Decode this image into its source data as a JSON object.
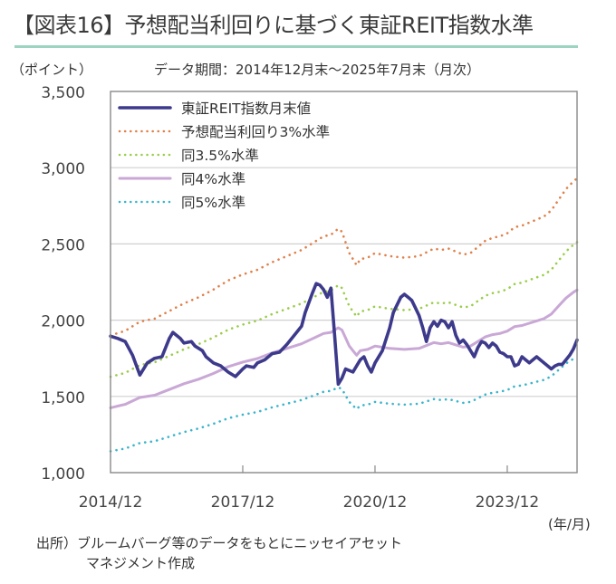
{
  "title": "【図表16】予想配当利回りに基づく東証REIT指数水準",
  "y_unit": "（ポイント）",
  "period_note": "データ期間：2014年12月末～2025年7月末（月次）",
  "x_unit": "(年/月)",
  "source_line1": "出所）ブルームバーグ等のデータをもとにニッセイアセット",
  "source_line2": "マネジメント作成",
  "colors": {
    "reit": "#3d3a8c",
    "y3": "#e0804a",
    "y35": "#9acd4a",
    "y4": "#c9a8d6",
    "y5": "#3bb4cc",
    "grid": "#d0d0d0",
    "axis": "#888888",
    "title_rule": "#9dd3c2"
  },
  "chart_data": {
    "type": "line",
    "title": "予想配当利回りに基づく東証REIT指数水準",
    "xlabel": "(年/月)",
    "ylabel": "（ポイント）",
    "ylim": [
      1000,
      3500
    ],
    "yticks": [
      1000,
      1500,
      2000,
      2500,
      3000,
      3500
    ],
    "ytick_labels": [
      "1,000",
      "1,500",
      "2,000",
      "2,500",
      "3,000",
      "3,500"
    ],
    "x_start": "2014/12",
    "x_end": "2025/7",
    "x_months_total": 127,
    "xticks": [
      {
        "month_index": 0,
        "label": "2014/12"
      },
      {
        "month_index": 36,
        "label": "2017/12"
      },
      {
        "month_index": 72,
        "label": "2020/12"
      },
      {
        "month_index": 108,
        "label": "2023/12"
      }
    ],
    "grid": "horizontal",
    "legend": "top-left",
    "series": [
      {
        "key": "reit",
        "name": "東証REIT指数月末値",
        "style": "solid-thick",
        "points": [
          [
            0,
            1895
          ],
          [
            2,
            1880
          ],
          [
            4,
            1860
          ],
          [
            6,
            1770
          ],
          [
            8,
            1640
          ],
          [
            10,
            1720
          ],
          [
            12,
            1750
          ],
          [
            14,
            1760
          ],
          [
            16,
            1880
          ],
          [
            17,
            1920
          ],
          [
            19,
            1880
          ],
          [
            20,
            1850
          ],
          [
            22,
            1860
          ],
          [
            23,
            1830
          ],
          [
            25,
            1800
          ],
          [
            26,
            1760
          ],
          [
            28,
            1720
          ],
          [
            30,
            1700
          ],
          [
            32,
            1660
          ],
          [
            34,
            1630
          ],
          [
            36,
            1680
          ],
          [
            37,
            1700
          ],
          [
            39,
            1690
          ],
          [
            40,
            1720
          ],
          [
            42,
            1740
          ],
          [
            44,
            1780
          ],
          [
            46,
            1790
          ],
          [
            48,
            1840
          ],
          [
            50,
            1900
          ],
          [
            52,
            1960
          ],
          [
            53,
            2050
          ],
          [
            55,
            2180
          ],
          [
            56,
            2240
          ],
          [
            57,
            2230
          ],
          [
            58,
            2200
          ],
          [
            59,
            2150
          ],
          [
            60,
            2210
          ],
          [
            61,
            1900
          ],
          [
            62,
            1580
          ],
          [
            63,
            1620
          ],
          [
            64,
            1680
          ],
          [
            66,
            1660
          ],
          [
            67,
            1700
          ],
          [
            68,
            1740
          ],
          [
            69,
            1760
          ],
          [
            70,
            1700
          ],
          [
            71,
            1660
          ],
          [
            72,
            1720
          ],
          [
            74,
            1800
          ],
          [
            76,
            1950
          ],
          [
            77,
            2050
          ],
          [
            79,
            2150
          ],
          [
            80,
            2170
          ],
          [
            81,
            2150
          ],
          [
            82,
            2130
          ],
          [
            83,
            2080
          ],
          [
            84,
            2030
          ],
          [
            85,
            1950
          ],
          [
            86,
            1860
          ],
          [
            87,
            1950
          ],
          [
            88,
            1990
          ],
          [
            89,
            1960
          ],
          [
            90,
            2000
          ],
          [
            91,
            1990
          ],
          [
            92,
            1950
          ],
          [
            93,
            1990
          ],
          [
            94,
            1900
          ],
          [
            95,
            1850
          ],
          [
            96,
            1870
          ],
          [
            97,
            1840
          ],
          [
            98,
            1800
          ],
          [
            99,
            1760
          ],
          [
            100,
            1820
          ],
          [
            101,
            1860
          ],
          [
            102,
            1850
          ],
          [
            103,
            1820
          ],
          [
            104,
            1850
          ],
          [
            105,
            1830
          ],
          [
            106,
            1790
          ],
          [
            107,
            1780
          ],
          [
            108,
            1760
          ],
          [
            109,
            1760
          ],
          [
            110,
            1700
          ],
          [
            111,
            1710
          ],
          [
            112,
            1760
          ],
          [
            113,
            1740
          ],
          [
            114,
            1720
          ],
          [
            115,
            1740
          ],
          [
            116,
            1760
          ],
          [
            117,
            1740
          ],
          [
            118,
            1720
          ],
          [
            119,
            1700
          ],
          [
            120,
            1680
          ],
          [
            121,
            1700
          ],
          [
            122,
            1710
          ],
          [
            123,
            1710
          ],
          [
            124,
            1740
          ],
          [
            125,
            1770
          ],
          [
            126,
            1810
          ],
          [
            127,
            1870
          ]
        ]
      },
      {
        "key": "y3",
        "name": "予想配当利回り3%水準",
        "style": "dotted",
        "points": [
          [
            0,
            1900
          ],
          [
            4,
            1930
          ],
          [
            8,
            1990
          ],
          [
            12,
            2010
          ],
          [
            16,
            2060
          ],
          [
            20,
            2110
          ],
          [
            24,
            2150
          ],
          [
            28,
            2200
          ],
          [
            32,
            2260
          ],
          [
            36,
            2300
          ],
          [
            40,
            2330
          ],
          [
            44,
            2380
          ],
          [
            48,
            2420
          ],
          [
            52,
            2460
          ],
          [
            56,
            2520
          ],
          [
            58,
            2550
          ],
          [
            60,
            2560
          ],
          [
            62,
            2600
          ],
          [
            63,
            2580
          ],
          [
            64,
            2510
          ],
          [
            65,
            2440
          ],
          [
            66,
            2400
          ],
          [
            67,
            2360
          ],
          [
            68,
            2400
          ],
          [
            70,
            2410
          ],
          [
            72,
            2440
          ],
          [
            76,
            2420
          ],
          [
            80,
            2410
          ],
          [
            84,
            2420
          ],
          [
            88,
            2470
          ],
          [
            90,
            2460
          ],
          [
            92,
            2470
          ],
          [
            94,
            2450
          ],
          [
            96,
            2430
          ],
          [
            98,
            2440
          ],
          [
            100,
            2480
          ],
          [
            102,
            2520
          ],
          [
            104,
            2540
          ],
          [
            106,
            2550
          ],
          [
            108,
            2570
          ],
          [
            110,
            2610
          ],
          [
            112,
            2620
          ],
          [
            114,
            2640
          ],
          [
            116,
            2660
          ],
          [
            118,
            2680
          ],
          [
            120,
            2720
          ],
          [
            122,
            2790
          ],
          [
            124,
            2860
          ],
          [
            126,
            2910
          ],
          [
            127,
            2930
          ]
        ]
      },
      {
        "key": "y35",
        "name": "同3.5%水準",
        "style": "dotted",
        "points": [
          [
            0,
            1629
          ],
          [
            4,
            1654
          ],
          [
            8,
            1706
          ],
          [
            12,
            1723
          ],
          [
            16,
            1766
          ],
          [
            20,
            1809
          ],
          [
            24,
            1843
          ],
          [
            28,
            1886
          ],
          [
            32,
            1937
          ],
          [
            36,
            1971
          ],
          [
            40,
            1997
          ],
          [
            44,
            2040
          ],
          [
            48,
            2074
          ],
          [
            52,
            2109
          ],
          [
            56,
            2160
          ],
          [
            58,
            2186
          ],
          [
            60,
            2194
          ],
          [
            62,
            2229
          ],
          [
            63,
            2211
          ],
          [
            64,
            2151
          ],
          [
            65,
            2091
          ],
          [
            66,
            2057
          ],
          [
            67,
            2023
          ],
          [
            68,
            2057
          ],
          [
            70,
            2066
          ],
          [
            72,
            2091
          ],
          [
            76,
            2074
          ],
          [
            80,
            2066
          ],
          [
            84,
            2074
          ],
          [
            88,
            2117
          ],
          [
            90,
            2109
          ],
          [
            92,
            2117
          ],
          [
            94,
            2100
          ],
          [
            96,
            2083
          ],
          [
            98,
            2091
          ],
          [
            100,
            2126
          ],
          [
            102,
            2160
          ],
          [
            104,
            2177
          ],
          [
            106,
            2186
          ],
          [
            108,
            2203
          ],
          [
            110,
            2237
          ],
          [
            112,
            2246
          ],
          [
            114,
            2263
          ],
          [
            116,
            2280
          ],
          [
            118,
            2297
          ],
          [
            120,
            2331
          ],
          [
            122,
            2391
          ],
          [
            124,
            2451
          ],
          [
            126,
            2494
          ],
          [
            127,
            2511
          ]
        ]
      },
      {
        "key": "y4",
        "name": "同4%水準",
        "style": "solid",
        "points": [
          [
            0,
            1425
          ],
          [
            4,
            1448
          ],
          [
            8,
            1493
          ],
          [
            12,
            1508
          ],
          [
            16,
            1545
          ],
          [
            20,
            1583
          ],
          [
            24,
            1613
          ],
          [
            28,
            1650
          ],
          [
            32,
            1695
          ],
          [
            36,
            1725
          ],
          [
            40,
            1748
          ],
          [
            44,
            1785
          ],
          [
            48,
            1815
          ],
          [
            52,
            1845
          ],
          [
            56,
            1890
          ],
          [
            58,
            1913
          ],
          [
            60,
            1920
          ],
          [
            62,
            1950
          ],
          [
            63,
            1935
          ],
          [
            64,
            1883
          ],
          [
            65,
            1830
          ],
          [
            66,
            1800
          ],
          [
            67,
            1770
          ],
          [
            68,
            1800
          ],
          [
            70,
            1808
          ],
          [
            72,
            1830
          ],
          [
            76,
            1815
          ],
          [
            80,
            1808
          ],
          [
            84,
            1815
          ],
          [
            88,
            1853
          ],
          [
            90,
            1845
          ],
          [
            92,
            1853
          ],
          [
            94,
            1838
          ],
          [
            96,
            1823
          ],
          [
            98,
            1830
          ],
          [
            100,
            1860
          ],
          [
            102,
            1890
          ],
          [
            104,
            1905
          ],
          [
            106,
            1913
          ],
          [
            108,
            1928
          ],
          [
            110,
            1958
          ],
          [
            112,
            1965
          ],
          [
            114,
            1980
          ],
          [
            116,
            1995
          ],
          [
            118,
            2010
          ],
          [
            120,
            2040
          ],
          [
            122,
            2093
          ],
          [
            124,
            2145
          ],
          [
            126,
            2183
          ],
          [
            127,
            2198
          ]
        ]
      },
      {
        "key": "y5",
        "name": "同5%水準",
        "style": "dotted",
        "points": [
          [
            0,
            1140
          ],
          [
            4,
            1158
          ],
          [
            8,
            1194
          ],
          [
            12,
            1206
          ],
          [
            16,
            1236
          ],
          [
            20,
            1266
          ],
          [
            24,
            1290
          ],
          [
            28,
            1320
          ],
          [
            32,
            1356
          ],
          [
            36,
            1380
          ],
          [
            40,
            1398
          ],
          [
            44,
            1428
          ],
          [
            48,
            1452
          ],
          [
            52,
            1476
          ],
          [
            56,
            1512
          ],
          [
            58,
            1530
          ],
          [
            60,
            1536
          ],
          [
            62,
            1560
          ],
          [
            63,
            1548
          ],
          [
            64,
            1506
          ],
          [
            65,
            1464
          ],
          [
            66,
            1440
          ],
          [
            67,
            1416
          ],
          [
            68,
            1440
          ],
          [
            70,
            1446
          ],
          [
            72,
            1464
          ],
          [
            76,
            1452
          ],
          [
            80,
            1446
          ],
          [
            84,
            1452
          ],
          [
            88,
            1482
          ],
          [
            90,
            1476
          ],
          [
            92,
            1482
          ],
          [
            94,
            1470
          ],
          [
            96,
            1458
          ],
          [
            98,
            1464
          ],
          [
            100,
            1488
          ],
          [
            102,
            1512
          ],
          [
            104,
            1524
          ],
          [
            106,
            1530
          ],
          [
            108,
            1542
          ],
          [
            110,
            1566
          ],
          [
            112,
            1572
          ],
          [
            114,
            1584
          ],
          [
            116,
            1596
          ],
          [
            118,
            1608
          ],
          [
            120,
            1632
          ],
          [
            122,
            1674
          ],
          [
            124,
            1716
          ],
          [
            126,
            1746
          ],
          [
            127,
            1758
          ]
        ]
      }
    ]
  }
}
